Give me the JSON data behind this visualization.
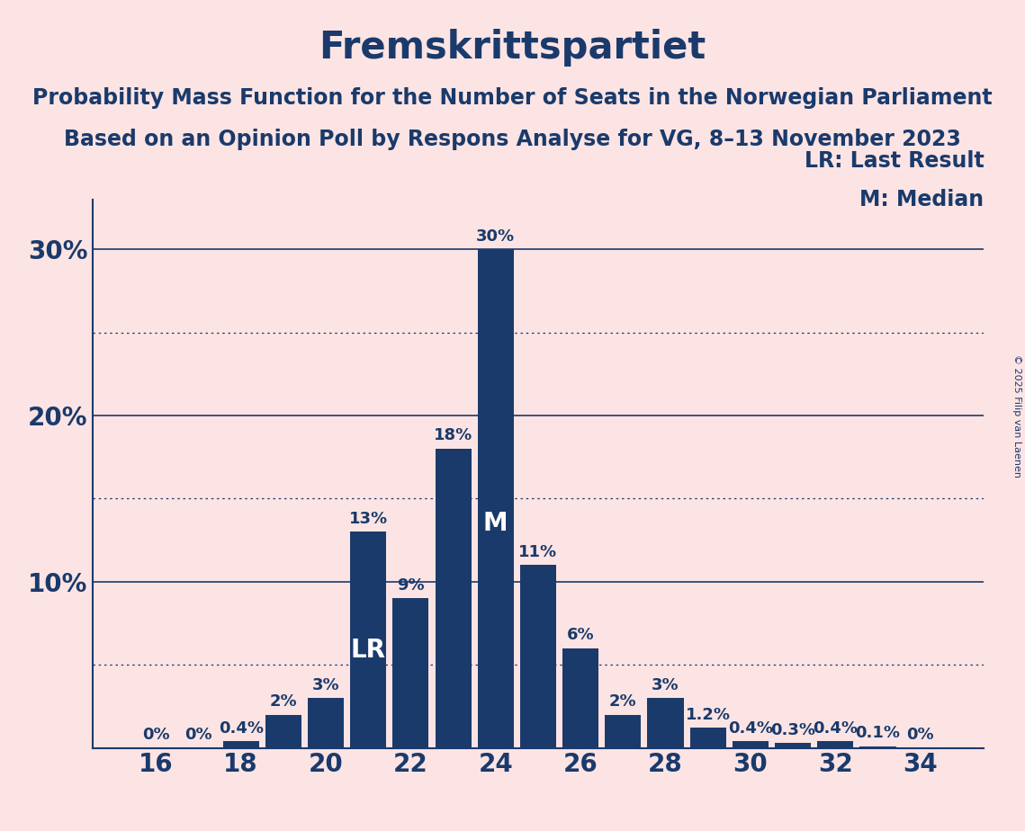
{
  "title": "Fremskrittspartiet",
  "subtitle1": "Probability Mass Function for the Number of Seats in the Norwegian Parliament",
  "subtitle2": "Based on an Opinion Poll by Respons Analyse for VG, 8–13 November 2023",
  "copyright": "© 2025 Filip van Laenen",
  "background_color": "#fce4e4",
  "bar_color": "#1a3a6b",
  "text_color": "#1a3a6b",
  "seats": [
    16,
    17,
    18,
    19,
    20,
    21,
    22,
    23,
    24,
    25,
    26,
    27,
    28,
    29,
    30,
    31,
    32,
    33,
    34
  ],
  "probabilities": [
    0.0,
    0.0,
    0.4,
    2.0,
    3.0,
    13.0,
    9.0,
    18.0,
    30.0,
    11.0,
    6.0,
    2.0,
    3.0,
    1.2,
    0.4,
    0.3,
    0.4,
    0.1,
    0.0
  ],
  "prob_labels": [
    "0%",
    "0%",
    "0.4%",
    "2%",
    "3%",
    "13%",
    "9%",
    "18%",
    "30%",
    "11%",
    "6%",
    "2%",
    "3%",
    "1.2%",
    "0.4%",
    "0.3%",
    "0.4%",
    "0.1%",
    "0%"
  ],
  "lr_seat": 21,
  "median_seat": 24,
  "lr_label": "LR",
  "median_label": "M",
  "lr_legend": "LR: Last Result",
  "median_legend": "M: Median",
  "ylim": [
    0,
    33
  ],
  "xtick_positions": [
    16,
    18,
    20,
    22,
    24,
    26,
    28,
    30,
    32,
    34
  ],
  "solid_lines": [
    10,
    20,
    30
  ],
  "dotted_lines": [
    5,
    15,
    25
  ],
  "title_fontsize": 30,
  "subtitle_fontsize": 17,
  "axis_fontsize": 20,
  "bar_label_fontsize": 13,
  "legend_fontsize": 17,
  "overlay_label_fontsize": 20,
  "copyright_fontsize": 8
}
